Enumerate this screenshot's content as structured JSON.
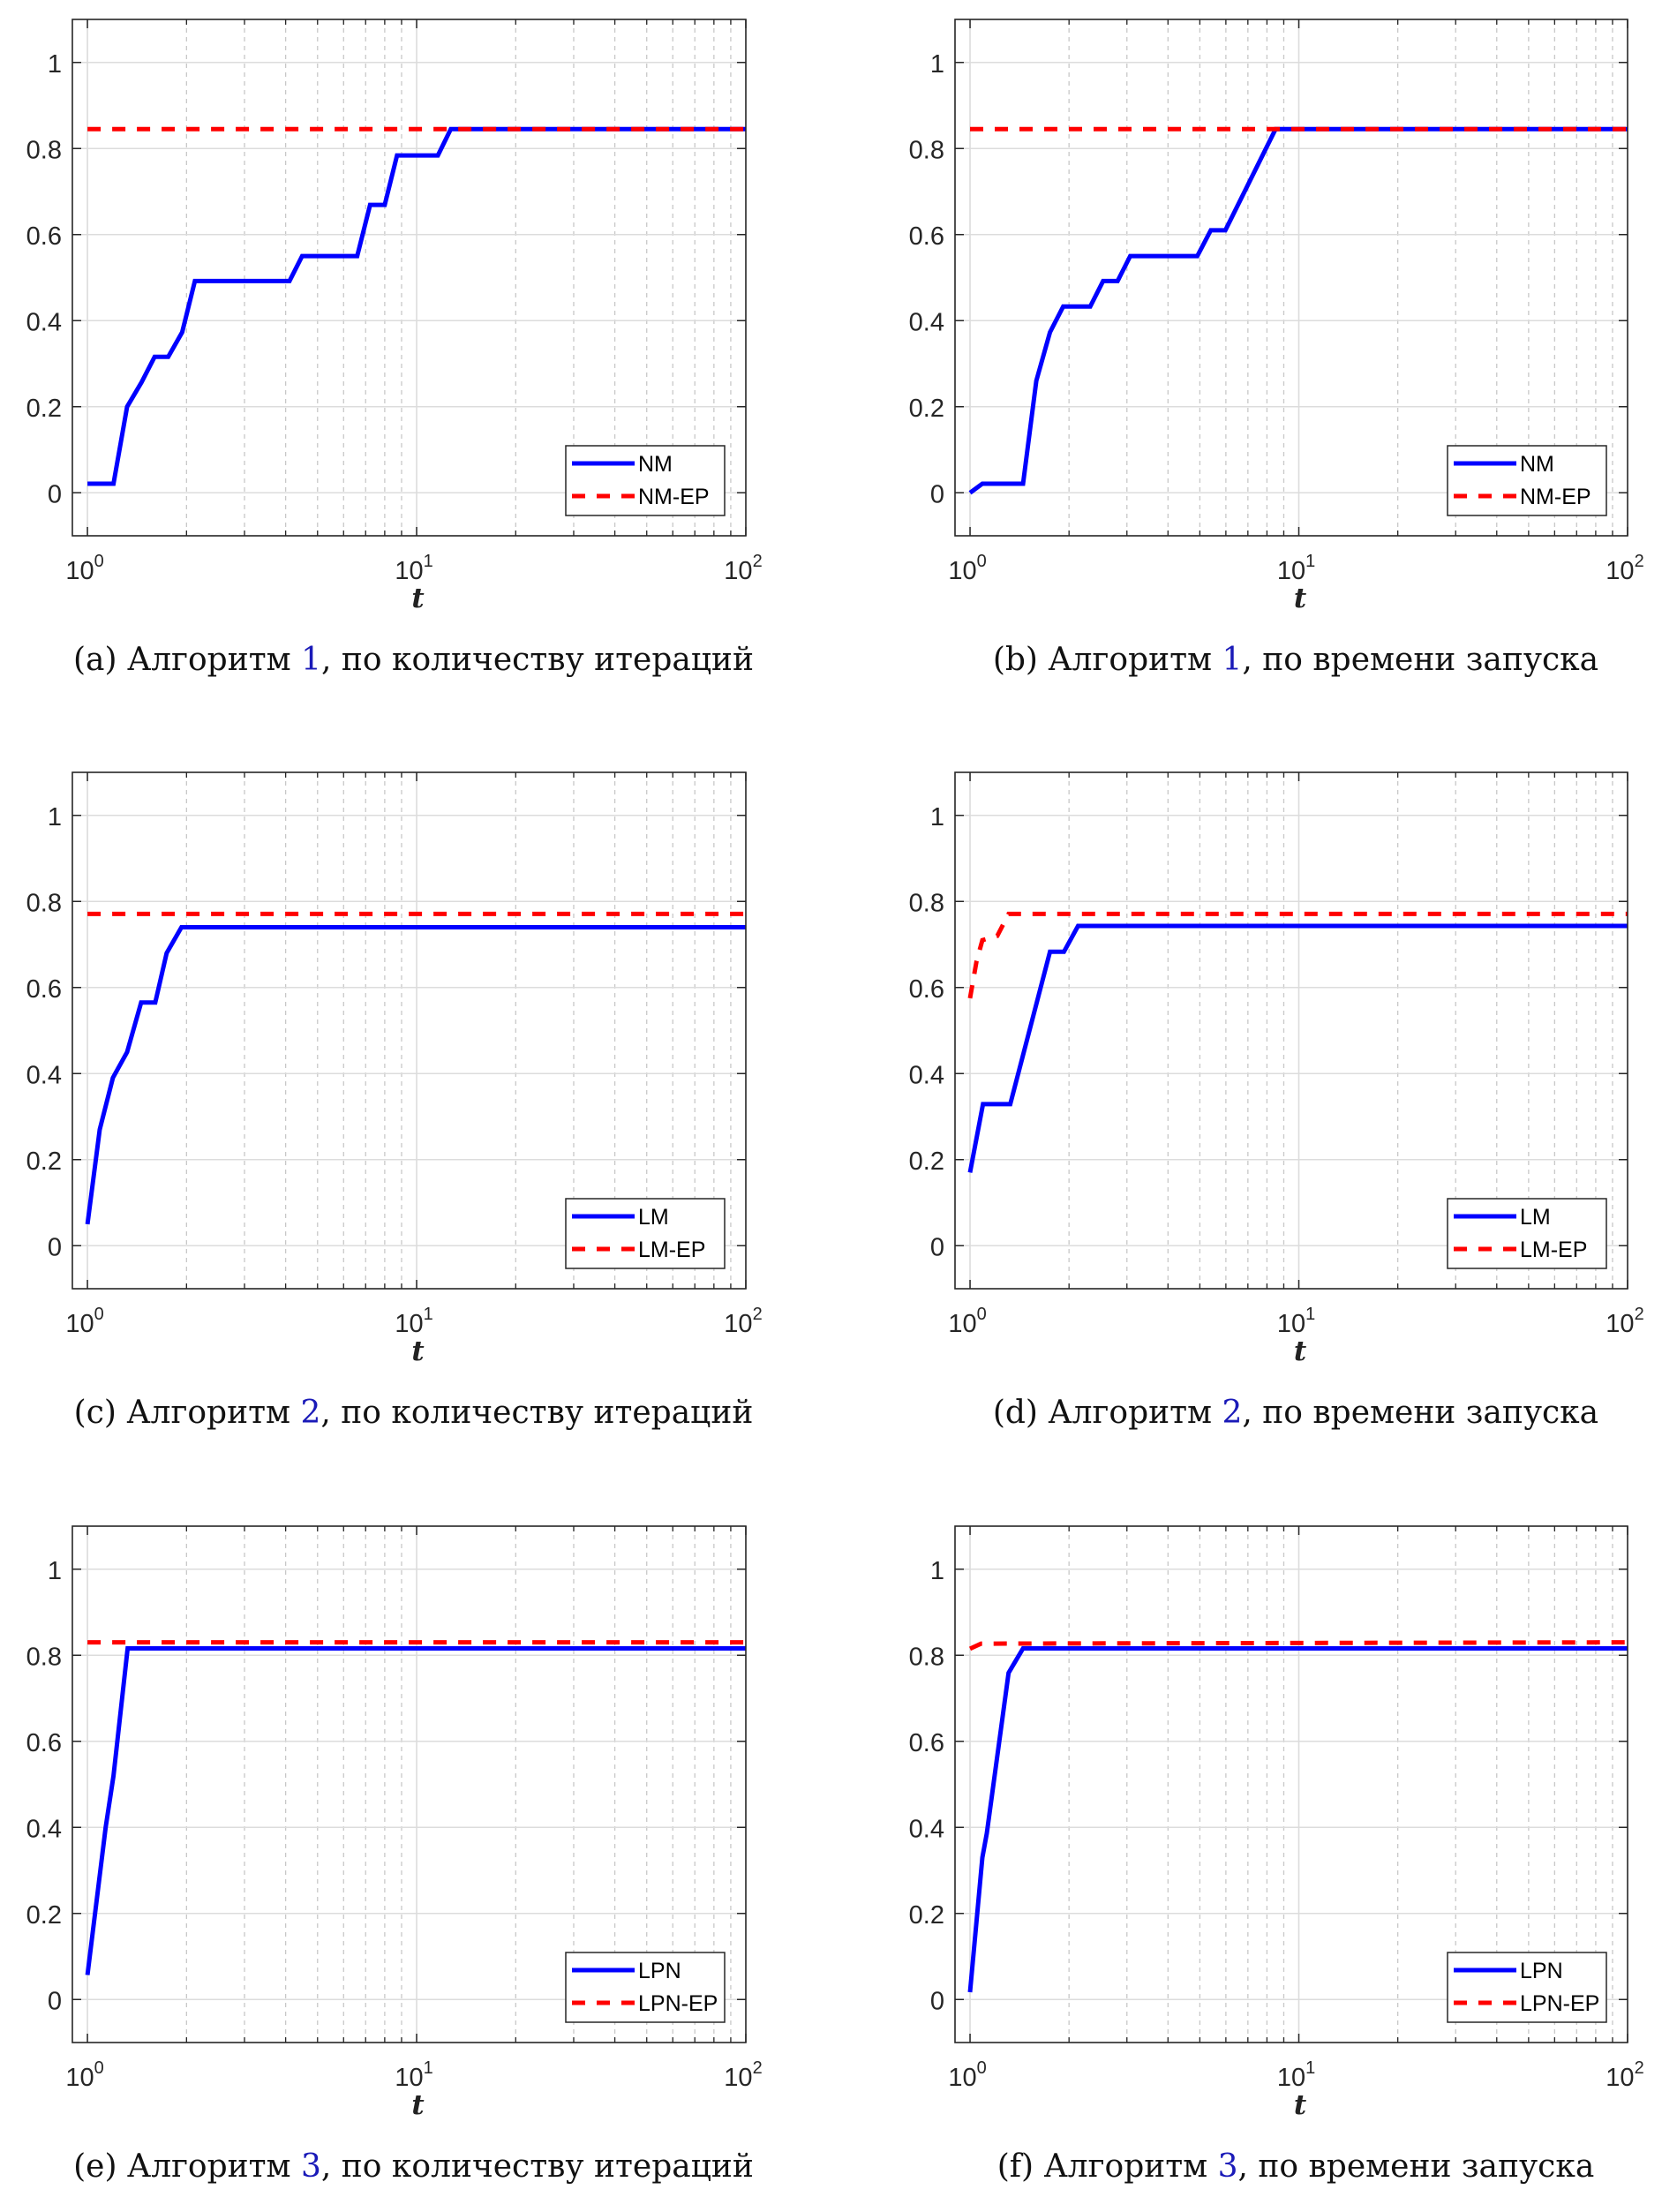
{
  "figure": {
    "colors": {
      "primary": "#0000ff",
      "ep": "#ff0000",
      "grid": "#dcdcdc",
      "axis": "#262626",
      "ref": "#1a1ab8"
    }
  },
  "chart_data": [
    {
      "id": "a",
      "type": "line",
      "caption": {
        "prefix": "(a) Алгоритм ",
        "ref": "1",
        "suffix": ", по количеству итераций"
      },
      "xlabel": "t",
      "ylabel": "",
      "xscale": "log",
      "xlim": [
        0.9,
        100
      ],
      "ylim": [
        -0.1,
        1.1
      ],
      "xticks": [
        {
          "base": "10",
          "exp": "0",
          "value": 1
        },
        {
          "base": "10",
          "exp": "1",
          "value": 10
        },
        {
          "base": "10",
          "exp": "2",
          "value": 100
        }
      ],
      "yticks": [
        {
          "label": "0",
          "value": 0
        },
        {
          "label": "0.2",
          "value": 0.2
        },
        {
          "label": "0.4",
          "value": 0.4
        },
        {
          "label": "0.6",
          "value": 0.6
        },
        {
          "label": "0.8",
          "value": 0.8
        },
        {
          "label": "1",
          "value": 1
        }
      ],
      "grid": true,
      "legend_position": "bottom-right",
      "series": [
        {
          "name": "NM",
          "style": "solid",
          "color": "#0000ff",
          "x": [
            1,
            1.2,
            1.32,
            1.46,
            1.6,
            1.76,
            1.94,
            2.12,
            4.11,
            4.49,
            6.6,
            7.22,
            8.0,
            8.72,
            11.6,
            12.7,
            100
          ],
          "y": [
            0.021,
            0.021,
            0.2,
            0.257,
            0.316,
            0.316,
            0.373,
            0.492,
            0.492,
            0.55,
            0.55,
            0.669,
            0.669,
            0.784,
            0.784,
            0.845,
            0.845
          ]
        },
        {
          "name": "NM-EP",
          "style": "dashed",
          "color": "#ff0000",
          "x": [
            1,
            100
          ],
          "y": [
            0.845,
            0.845
          ]
        }
      ]
    },
    {
      "id": "b",
      "type": "line",
      "caption": {
        "prefix": "(b) Алгоритм ",
        "ref": "1",
        "suffix": ", по времени запуска"
      },
      "xlabel": "t",
      "ylabel": "",
      "xscale": "log",
      "xlim": [
        0.9,
        100
      ],
      "ylim": [
        -0.1,
        1.1
      ],
      "xticks": [
        {
          "base": "10",
          "exp": "0",
          "value": 1
        },
        {
          "base": "10",
          "exp": "1",
          "value": 10
        },
        {
          "base": "10",
          "exp": "2",
          "value": 100
        }
      ],
      "yticks": [
        {
          "label": "0",
          "value": 0
        },
        {
          "label": "0.2",
          "value": 0.2
        },
        {
          "label": "0.4",
          "value": 0.4
        },
        {
          "label": "0.6",
          "value": 0.6
        },
        {
          "label": "0.8",
          "value": 0.8
        },
        {
          "label": "1",
          "value": 1
        }
      ],
      "grid": true,
      "legend_position": "bottom-right",
      "series": [
        {
          "name": "NM",
          "style": "solid",
          "color": "#0000ff",
          "x": [
            1,
            1.09,
            1.45,
            1.59,
            1.75,
            1.92,
            2.32,
            2.54,
            2.81,
            3.07,
            4.91,
            5.4,
            5.98,
            8.5,
            100
          ],
          "y": [
            0.0,
            0.021,
            0.021,
            0.26,
            0.373,
            0.433,
            0.433,
            0.492,
            0.492,
            0.55,
            0.55,
            0.61,
            0.61,
            0.845,
            0.845
          ]
        },
        {
          "name": "NM-EP",
          "style": "dashed",
          "color": "#ff0000",
          "x": [
            1,
            100
          ],
          "y": [
            0.845,
            0.845
          ]
        }
      ]
    },
    {
      "id": "c",
      "type": "line",
      "caption": {
        "prefix": "(c) Алгоритм ",
        "ref": "2",
        "suffix": ", по количеству итераций"
      },
      "xlabel": "t",
      "ylabel": "",
      "xscale": "log",
      "xlim": [
        0.9,
        100
      ],
      "ylim": [
        -0.1,
        1.1
      ],
      "xticks": [
        {
          "base": "10",
          "exp": "0",
          "value": 1
        },
        {
          "base": "10",
          "exp": "1",
          "value": 10
        },
        {
          "base": "10",
          "exp": "2",
          "value": 100
        }
      ],
      "yticks": [
        {
          "label": "0",
          "value": 0
        },
        {
          "label": "0.2",
          "value": 0.2
        },
        {
          "label": "0.4",
          "value": 0.4
        },
        {
          "label": "0.6",
          "value": 0.6
        },
        {
          "label": "0.8",
          "value": 0.8
        },
        {
          "label": "1",
          "value": 1
        }
      ],
      "grid": true,
      "legend_position": "bottom-right",
      "series": [
        {
          "name": "LM",
          "style": "solid",
          "color": "#0000ff",
          "x": [
            1,
            1.09,
            1.195,
            1.32,
            1.456,
            1.607,
            1.74,
            1.93,
            100
          ],
          "y": [
            0.05,
            0.27,
            0.39,
            0.45,
            0.565,
            0.565,
            0.68,
            0.74,
            0.74
          ]
        },
        {
          "name": "LM-EP",
          "style": "dashed",
          "color": "#ff0000",
          "x": [
            1,
            100
          ],
          "y": [
            0.771,
            0.771
          ]
        }
      ]
    },
    {
      "id": "d",
      "type": "line",
      "caption": {
        "prefix": "(d) Алгоритм ",
        "ref": "2",
        "suffix": ", по времени запуска"
      },
      "xlabel": "t",
      "ylabel": "",
      "xscale": "log",
      "xlim": [
        0.9,
        100
      ],
      "ylim": [
        -0.1,
        1.1
      ],
      "xticks": [
        {
          "base": "10",
          "exp": "0",
          "value": 1
        },
        {
          "base": "10",
          "exp": "1",
          "value": 10
        },
        {
          "base": "10",
          "exp": "2",
          "value": 100
        }
      ],
      "yticks": [
        {
          "label": "0",
          "value": 0
        },
        {
          "label": "0.2",
          "value": 0.2
        },
        {
          "label": "0.4",
          "value": 0.4
        },
        {
          "label": "0.6",
          "value": 0.6
        },
        {
          "label": "0.8",
          "value": 0.8
        },
        {
          "label": "1",
          "value": 1
        }
      ],
      "grid": true,
      "legend_position": "bottom-right",
      "series": [
        {
          "name": "LM",
          "style": "solid",
          "color": "#0000ff",
          "x": [
            1,
            1.095,
            1.325,
            1.75,
            1.93,
            2.13,
            100
          ],
          "y": [
            0.17,
            0.329,
            0.329,
            0.683,
            0.683,
            0.743,
            0.743
          ]
        },
        {
          "name": "LM-EP",
          "style": "dashed",
          "color": "#ff0000",
          "x": [
            1,
            1.046,
            1.09,
            1.21,
            1.31,
            100
          ],
          "y": [
            0.575,
            0.66,
            0.71,
            0.72,
            0.771,
            0.771
          ]
        }
      ]
    },
    {
      "id": "e",
      "type": "line",
      "caption": {
        "prefix": "(e) Алгоритм ",
        "ref": "3",
        "suffix": ", по количеству итераций"
      },
      "xlabel": "t",
      "ylabel": "",
      "xscale": "log",
      "xlim": [
        0.9,
        100
      ],
      "ylim": [
        -0.1,
        1.1
      ],
      "xticks": [
        {
          "base": "10",
          "exp": "0",
          "value": 1
        },
        {
          "base": "10",
          "exp": "1",
          "value": 10
        },
        {
          "base": "10",
          "exp": "2",
          "value": 100
        }
      ],
      "yticks": [
        {
          "label": "0",
          "value": 0
        },
        {
          "label": "0.2",
          "value": 0.2
        },
        {
          "label": "0.4",
          "value": 0.4
        },
        {
          "label": "0.6",
          "value": 0.6
        },
        {
          "label": "0.8",
          "value": 0.8
        },
        {
          "label": "1",
          "value": 1
        }
      ],
      "grid": true,
      "legend_position": "bottom-right",
      "series": [
        {
          "name": "LPN",
          "style": "solid",
          "color": "#0000ff",
          "x": [
            1,
            1.136,
            1.2,
            1.325,
            100
          ],
          "y": [
            0.057,
            0.4,
            0.52,
            0.816,
            0.816
          ]
        },
        {
          "name": "LPN-EP",
          "style": "dashed",
          "color": "#ff0000",
          "x": [
            1,
            100
          ],
          "y": [
            0.83,
            0.83
          ]
        }
      ]
    },
    {
      "id": "f",
      "type": "line",
      "caption": {
        "prefix": "(f) Алгоритм ",
        "ref": "3",
        "suffix": ", по времени запуска"
      },
      "xlabel": "t",
      "ylabel": "",
      "xscale": "log",
      "xlim": [
        0.9,
        100
      ],
      "ylim": [
        -0.1,
        1.1
      ],
      "xticks": [
        {
          "base": "10",
          "exp": "0",
          "value": 1
        },
        {
          "base": "10",
          "exp": "1",
          "value": 10
        },
        {
          "base": "10",
          "exp": "2",
          "value": 100
        }
      ],
      "yticks": [
        {
          "label": "0",
          "value": 0
        },
        {
          "label": "0.2",
          "value": 0.2
        },
        {
          "label": "0.4",
          "value": 0.4
        },
        {
          "label": "0.6",
          "value": 0.6
        },
        {
          "label": "0.8",
          "value": 0.8
        },
        {
          "label": "1",
          "value": 1
        }
      ],
      "grid": true,
      "legend_position": "bottom-right",
      "series": [
        {
          "name": "LPN",
          "style": "solid",
          "color": "#0000ff",
          "x": [
            1,
            1.09,
            1.124,
            1.31,
            1.45,
            100
          ],
          "y": [
            0.017,
            0.33,
            0.386,
            0.759,
            0.816,
            0.816
          ]
        },
        {
          "name": "LPN-EP",
          "style": "dashed",
          "color": "#ff0000",
          "x": [
            1,
            1.08,
            100
          ],
          "y": [
            0.815,
            0.827,
            0.83
          ]
        }
      ]
    }
  ]
}
